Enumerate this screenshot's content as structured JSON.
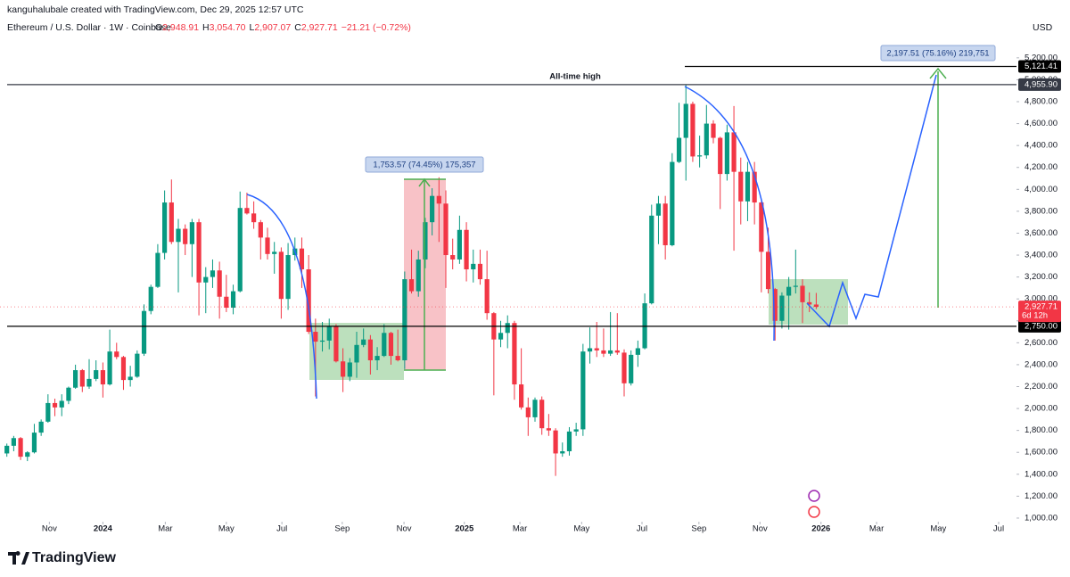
{
  "chart_data": {
    "type": "candlestick",
    "attribution": "kanguhalubale created with TradingView.com, Dec 29, 2025 12:57 UTC",
    "title": "Ethereum / U.S. Dollar · 1W · Coinbase",
    "ohlc_header": [
      {
        "label": "O",
        "value": "2,948.91"
      },
      {
        "label": "H",
        "value": "3,054.70"
      },
      {
        "label": "L",
        "value": "2,907.07"
      },
      {
        "label": "C",
        "value": "2,927.71"
      }
    ],
    "change": "−21.21 (−0.72%)",
    "currency": "USD",
    "brand": "TradingView",
    "up_color": "#089981",
    "down_color": "#f23645",
    "open": [
      1590,
      1660,
      1730,
      1560,
      1600,
      1780,
      1880,
      2050,
      2010,
      2070,
      2190,
      2350,
      2200,
      2270,
      2350,
      2220,
      2520,
      2470,
      2260,
      2290,
      2500,
      2890,
      3110,
      3420,
      3880,
      3520,
      3640,
      3500,
      3700,
      3150,
      3200,
      3260,
      3020,
      2920,
      3070,
      3830,
      3780,
      3700,
      3560,
      3410,
      3430,
      3000,
      3400,
      3460,
      3270,
      2700,
      2610,
      2620,
      2750,
      2430,
      2290,
      2420,
      2580,
      2630,
      2440,
      2480,
      2690,
      2480,
      2440,
      3180,
      3070,
      3360,
      3700,
      3940,
      3870,
      3400,
      3360,
      3630,
      3270,
      3320,
      3180,
      2870,
      2630,
      2690,
      2780,
      2220,
      2010,
      1920,
      2080,
      1820,
      1800,
      1590,
      1610,
      1790,
      1810,
      2520,
      2550,
      2530,
      2500,
      2530,
      2510,
      2230,
      2490,
      2550,
      2960,
      3760,
      3870,
      3490,
      4250,
      4470,
      4780,
      4300,
      4310,
      4600,
      4470,
      4140,
      4520,
      4160,
      3890,
      4160,
      3880,
      3430,
      3090,
      2800,
      3030,
      3110,
      3120,
      2970,
      2948.91
    ],
    "high": [
      1680,
      1750,
      1740,
      1610,
      1860,
      1900,
      2130,
      2090,
      2130,
      2200,
      2400,
      2360,
      2450,
      2440,
      2420,
      2720,
      2600,
      2480,
      2390,
      2530,
      2950,
      3130,
      3500,
      3990,
      4090,
      3730,
      3680,
      3730,
      3730,
      3290,
      3360,
      3340,
      3220,
      3130,
      3980,
      3970,
      3890,
      3720,
      3650,
      3520,
      3470,
      3510,
      3560,
      3560,
      3400,
      2820,
      2790,
      2820,
      2770,
      2550,
      2460,
      2700,
      2730,
      2670,
      2560,
      2770,
      2700,
      2720,
      3250,
      3450,
      3440,
      3740,
      4010,
      4110,
      3990,
      3550,
      3760,
      3700,
      3450,
      3450,
      3440,
      2880,
      2800,
      2850,
      2800,
      2550,
      2100,
      2100,
      2110,
      1950,
      1820,
      1690,
      1830,
      1870,
      2590,
      2740,
      2790,
      2730,
      2880,
      2870,
      2540,
      2530,
      2620,
      3050,
      3860,
      3940,
      3940,
      4330,
      4790,
      4956,
      4800,
      4490,
      4770,
      4630,
      4480,
      4590,
      4760,
      4290,
      4250,
      4250,
      3890,
      3650,
      3100,
      3060,
      3200,
      3450,
      3180,
      3060,
      3054.7
    ],
    "low": [
      1560,
      1610,
      1530,
      1520,
      1590,
      1750,
      1870,
      1930,
      1930,
      2040,
      2180,
      2150,
      2180,
      2250,
      2100,
      2210,
      2450,
      2170,
      2200,
      2280,
      2480,
      2860,
      3100,
      3360,
      3500,
      3060,
      3400,
      3200,
      2850,
      2870,
      3100,
      2820,
      2880,
      2860,
      3060,
      3770,
      3640,
      3360,
      3360,
      3230,
      2820,
      2900,
      3350,
      3100,
      2680,
      2110,
      2520,
      2540,
      2420,
      2150,
      2250,
      2280,
      2560,
      2310,
      2350,
      2470,
      2400,
      2430,
      2360,
      3050,
      3020,
      3280,
      3580,
      3520,
      3100,
      3270,
      3320,
      3160,
      3150,
      3130,
      2810,
      2120,
      2560,
      2550,
      2080,
      1990,
      1750,
      1880,
      1760,
      1750,
      1385,
      1560,
      1570,
      1750,
      1750,
      2410,
      2470,
      2470,
      2480,
      2490,
      2110,
      2210,
      2380,
      2540,
      2950,
      3500,
      3360,
      3480,
      4240,
      4080,
      4250,
      4200,
      4280,
      4420,
      3820,
      4080,
      3440,
      3680,
      3710,
      3680,
      3060,
      3050,
      2620,
      2730,
      2720,
      3050,
      2780,
      2880,
      2907.07
    ],
    "close": [
      1660,
      1730,
      1560,
      1600,
      1780,
      1880,
      2050,
      2010,
      2070,
      2190,
      2350,
      2200,
      2270,
      2350,
      2220,
      2520,
      2470,
      2260,
      2290,
      2500,
      2890,
      3110,
      3420,
      3880,
      3520,
      3640,
      3500,
      3700,
      3150,
      3200,
      3260,
      3020,
      2920,
      3070,
      3830,
      3780,
      3700,
      3560,
      3410,
      3430,
      3000,
      3400,
      3460,
      3270,
      2700,
      2610,
      2620,
      2750,
      2430,
      2290,
      2420,
      2580,
      2630,
      2440,
      2480,
      2690,
      2480,
      2440,
      3180,
      3070,
      3360,
      3700,
      3940,
      3870,
      3400,
      3360,
      3630,
      3270,
      3320,
      3180,
      2870,
      2630,
      2690,
      2780,
      2220,
      2010,
      1920,
      2080,
      1820,
      1800,
      1590,
      1610,
      1790,
      1810,
      2520,
      2550,
      2530,
      2500,
      2530,
      2510,
      2230,
      2490,
      2550,
      2960,
      3760,
      3870,
      3490,
      4250,
      4470,
      4780,
      4300,
      4310,
      4600,
      4470,
      4140,
      4520,
      4160,
      3890,
      4160,
      3880,
      3430,
      3090,
      2800,
      3030,
      3110,
      3120,
      2970,
      2948.91,
      2927.71
    ],
    "xlim": [
      -1,
      147.2
    ],
    "xticks": [
      {
        "value": 6.2,
        "label": "Nov"
      },
      {
        "value": 14,
        "label": "2024"
      },
      {
        "value": 23.1,
        "label": "Mar"
      },
      {
        "value": 32,
        "label": "May"
      },
      {
        "value": 40.1,
        "label": "Jul"
      },
      {
        "value": 48.9,
        "label": "Sep"
      },
      {
        "value": 57.9,
        "label": "Nov"
      },
      {
        "value": 66.7,
        "label": "2025"
      },
      {
        "value": 74.8,
        "label": "Mar"
      },
      {
        "value": 83.8,
        "label": "May"
      },
      {
        "value": 92.6,
        "label": "Jul"
      },
      {
        "value": 100.9,
        "label": "Sep"
      },
      {
        "value": 109.8,
        "label": "Nov"
      },
      {
        "value": 118.7,
        "label": "2026"
      },
      {
        "value": 126.8,
        "label": "Mar"
      },
      {
        "value": 135.8,
        "label": "May"
      },
      {
        "value": 144.6,
        "label": "Jul"
      }
    ],
    "ylim": [
      845,
      5565
    ],
    "yticks": [
      {
        "value": 1000,
        "label": "1,000.00"
      },
      {
        "value": 1200,
        "label": "1,200.00"
      },
      {
        "value": 1400,
        "label": "1,400.00"
      },
      {
        "value": 1600,
        "label": "1,600.00"
      },
      {
        "value": 1800,
        "label": "1,800.00"
      },
      {
        "value": 2000,
        "label": "2,000.00"
      },
      {
        "value": 2200,
        "label": "2,200.00"
      },
      {
        "value": 2400,
        "label": "2,400.00"
      },
      {
        "value": 2600,
        "label": "2,600.00"
      },
      {
        "value": 2800,
        "label": "2,800.00"
      },
      {
        "value": 3000,
        "label": "3,000.00"
      },
      {
        "value": 3200,
        "label": "3,200.00"
      },
      {
        "value": 3400,
        "label": "3,400.00"
      },
      {
        "value": 3600,
        "label": "3,600.00"
      },
      {
        "value": 3800,
        "label": "3,800.00"
      },
      {
        "value": 4000,
        "label": "4,000.00"
      },
      {
        "value": 4200,
        "label": "4,200.00"
      },
      {
        "value": 4400,
        "label": "4,400.00"
      },
      {
        "value": 4600,
        "label": "4,600.00"
      },
      {
        "value": 4800,
        "label": "4,800.00"
      },
      {
        "value": 5000,
        "label": "5,000.00"
      },
      {
        "value": 5200,
        "label": "5,200.00"
      }
    ],
    "grid": false,
    "hlines": [
      {
        "value": 5121.41,
        "label": "5,121.41",
        "color": "#000000"
      },
      {
        "value": 4955.9,
        "label": "4,955.90",
        "color": "#363a45"
      },
      {
        "value": 2750,
        "label": "2,750.00",
        "color": "#000000"
      }
    ],
    "last_price": {
      "value": 2927.71,
      "label": "2,927.71",
      "countdown": "6d 12h",
      "color": "#f23645"
    },
    "ath_label": "All-time high",
    "measures": [
      {
        "label": "1,753.57 (74.45%) 175,357"
      },
      {
        "label": "2,197.51 (75.16%) 219,751"
      }
    ]
  }
}
